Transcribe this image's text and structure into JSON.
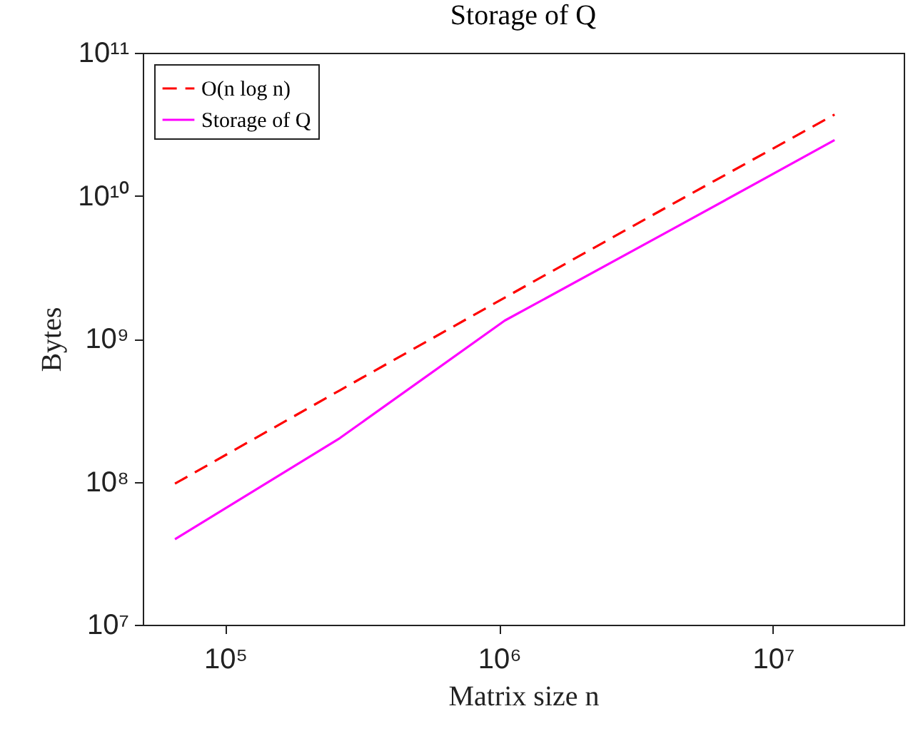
{
  "chart_data": {
    "type": "line",
    "title": "Storage of Q",
    "xlabel": "Matrix size n",
    "ylabel": "Bytes",
    "log": "xy",
    "grid": false,
    "legend": "top left",
    "marker": "none",
    "xlim": [
      50000,
      30000000
    ],
    "xticks": [
      {
        "value": 100000,
        "label": "10⁵"
      },
      {
        "value": 1000000,
        "label": "10⁶"
      },
      {
        "value": 10000000,
        "label": "10⁷"
      }
    ],
    "ylim": [
      10000000,
      100000000000
    ],
    "yticks": [
      {
        "value": 10000000,
        "label": "10⁷"
      },
      {
        "value": 100000000,
        "label": "10⁸"
      },
      {
        "value": 1000000000,
        "label": "10⁹"
      },
      {
        "value": 10000000000,
        "label": "10¹⁰"
      },
      {
        "value": 100000000000,
        "label": "10¹¹"
      }
    ],
    "x": [
      65536,
      262144,
      1048576,
      4194304,
      16777216
    ],
    "series": [
      {
        "name": "O(n log n)",
        "color": "#ff0000",
        "line_style": "dashed",
        "values": [
          97000000,
          436000000,
          1940000000,
          8540000000,
          37000000000
        ]
      },
      {
        "name": "Storage of Q",
        "color": "#ff00ff",
        "line_style": "solid",
        "values": [
          39600000,
          202000000,
          1340000000,
          5700000000,
          24500000000
        ]
      }
    ]
  }
}
